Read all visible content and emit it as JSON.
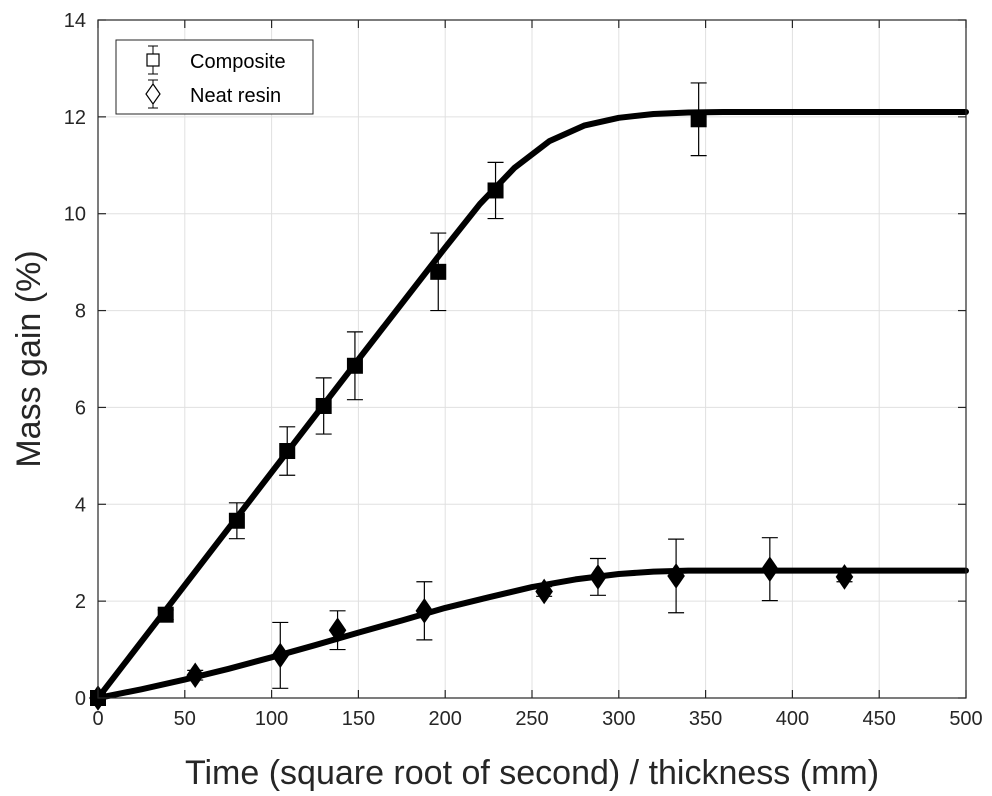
{
  "chart_data": {
    "type": "scatter",
    "xlabel": "Time (square root of second) / thickness (mm)",
    "ylabel": "Mass gain (%)",
    "xlim": [
      0,
      500
    ],
    "ylim": [
      0,
      14
    ],
    "xticks": [
      0,
      50,
      100,
      150,
      200,
      250,
      300,
      350,
      400,
      450,
      500
    ],
    "yticks": [
      0,
      2,
      4,
      6,
      8,
      10,
      12,
      14
    ],
    "grid": true,
    "legend_position": "top-left",
    "colors": {
      "series": "#000000",
      "grid": "#e0e0e0",
      "axes": "#262626"
    },
    "series": [
      {
        "name": "Composite",
        "marker": "square",
        "points": [
          {
            "x": 0,
            "y": 0.0,
            "err": 0.0
          },
          {
            "x": 39,
            "y": 1.72,
            "err": 0.1
          },
          {
            "x": 80,
            "y": 3.66,
            "err": 0.37
          },
          {
            "x": 109,
            "y": 5.1,
            "err": 0.5
          },
          {
            "x": 130,
            "y": 6.03,
            "err": 0.58
          },
          {
            "x": 148,
            "y": 6.86,
            "err": 0.7
          },
          {
            "x": 196,
            "y": 8.8,
            "err": 0.8
          },
          {
            "x": 229,
            "y": 10.48,
            "err": 0.58
          },
          {
            "x": 346,
            "y": 11.95,
            "err": 0.75
          }
        ],
        "fit": [
          [
            0,
            0
          ],
          [
            50,
            2.33
          ],
          [
            100,
            4.66
          ],
          [
            150,
            6.99
          ],
          [
            200,
            9.3
          ],
          [
            220,
            10.2
          ],
          [
            240,
            10.95
          ],
          [
            260,
            11.5
          ],
          [
            280,
            11.82
          ],
          [
            300,
            11.98
          ],
          [
            320,
            12.06
          ],
          [
            340,
            12.09
          ],
          [
            360,
            12.1
          ],
          [
            500,
            12.1
          ]
        ]
      },
      {
        "name": "Neat resin",
        "marker": "diamond",
        "points": [
          {
            "x": 0,
            "y": 0.0,
            "err": 0.0
          },
          {
            "x": 56,
            "y": 0.47,
            "err": 0.1
          },
          {
            "x": 105,
            "y": 0.88,
            "err": 0.68
          },
          {
            "x": 138,
            "y": 1.4,
            "err": 0.4
          },
          {
            "x": 188,
            "y": 1.8,
            "err": 0.6
          },
          {
            "x": 257,
            "y": 2.2,
            "err": 0.1
          },
          {
            "x": 288,
            "y": 2.5,
            "err": 0.38
          },
          {
            "x": 333,
            "y": 2.52,
            "err": 0.76
          },
          {
            "x": 387,
            "y": 2.66,
            "err": 0.65
          },
          {
            "x": 430,
            "y": 2.5,
            "err": 0.1
          }
        ],
        "fit": [
          [
            0,
            0
          ],
          [
            25,
            0.18
          ],
          [
            50,
            0.38
          ],
          [
            75,
            0.6
          ],
          [
            100,
            0.84
          ],
          [
            125,
            1.09
          ],
          [
            150,
            1.35
          ],
          [
            175,
            1.6
          ],
          [
            200,
            1.86
          ],
          [
            225,
            2.08
          ],
          [
            250,
            2.29
          ],
          [
            275,
            2.45
          ],
          [
            300,
            2.56
          ],
          [
            320,
            2.61
          ],
          [
            340,
            2.63
          ],
          [
            500,
            2.63
          ]
        ]
      }
    ]
  }
}
